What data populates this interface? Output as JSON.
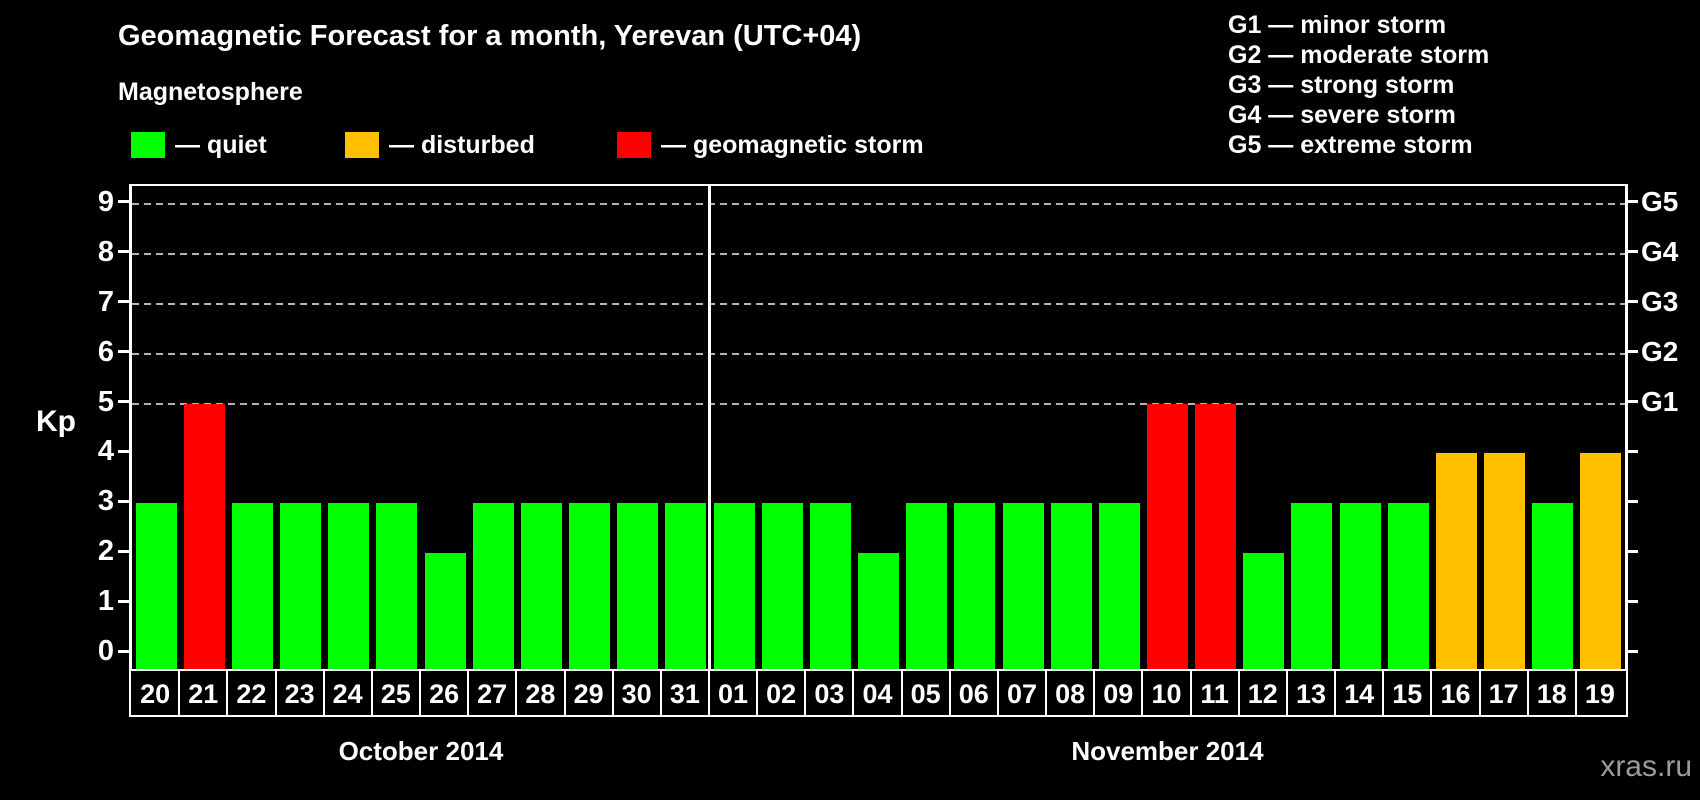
{
  "title": "Geomagnetic Forecast for a month, Yerevan (UTC+04)",
  "subtitle": "Magnetosphere",
  "legend": {
    "items": [
      {
        "name": "quiet",
        "label": "— quiet",
        "color": "#00ff00"
      },
      {
        "name": "disturbed",
        "label": "— disturbed",
        "color": "#ffc000"
      },
      {
        "name": "storm",
        "label": "— geomagnetic storm",
        "color": "#ff0000"
      }
    ]
  },
  "storm_scale_legend": [
    "G1 — minor storm",
    "G2 — moderate storm",
    "G3 — strong storm",
    "G4 — severe storm",
    "G5 — extreme storm"
  ],
  "watermark": "xras.ru",
  "chart_data": {
    "type": "bar",
    "title": "Geomagnetic Forecast for a month, Yerevan (UTC+04)",
    "ylabel_left": "Kp",
    "ylim": [
      0,
      9
    ],
    "y_ticks_left": [
      0,
      1,
      2,
      3,
      4,
      5,
      6,
      7,
      8,
      9
    ],
    "y_tick_labels_right": {
      "5": "G1",
      "6": "G2",
      "7": "G3",
      "8": "G4",
      "9": "G5"
    },
    "gridlines_at": [
      5,
      6,
      7,
      8,
      9
    ],
    "grid": "dashed, only at G-storm levels 5-9",
    "legend_position": "above chart",
    "colors": {
      "quiet": "#00ff00",
      "disturbed": "#ffc000",
      "storm": "#ff0000"
    },
    "months": [
      {
        "label": "October 2014",
        "days": [
          {
            "day": "20",
            "kp": 3,
            "status": "quiet"
          },
          {
            "day": "21",
            "kp": 5,
            "status": "storm"
          },
          {
            "day": "22",
            "kp": 3,
            "status": "quiet"
          },
          {
            "day": "23",
            "kp": 3,
            "status": "quiet"
          },
          {
            "day": "24",
            "kp": 3,
            "status": "quiet"
          },
          {
            "day": "25",
            "kp": 3,
            "status": "quiet"
          },
          {
            "day": "26",
            "kp": 2,
            "status": "quiet"
          },
          {
            "day": "27",
            "kp": 3,
            "status": "quiet"
          },
          {
            "day": "28",
            "kp": 3,
            "status": "quiet"
          },
          {
            "day": "29",
            "kp": 3,
            "status": "quiet"
          },
          {
            "day": "30",
            "kp": 3,
            "status": "quiet"
          },
          {
            "day": "31",
            "kp": 3,
            "status": "quiet"
          }
        ]
      },
      {
        "label": "November 2014",
        "days": [
          {
            "day": "01",
            "kp": 3,
            "status": "quiet"
          },
          {
            "day": "02",
            "kp": 3,
            "status": "quiet"
          },
          {
            "day": "03",
            "kp": 3,
            "status": "quiet"
          },
          {
            "day": "04",
            "kp": 2,
            "status": "quiet"
          },
          {
            "day": "05",
            "kp": 3,
            "status": "quiet"
          },
          {
            "day": "06",
            "kp": 3,
            "status": "quiet"
          },
          {
            "day": "07",
            "kp": 3,
            "status": "quiet"
          },
          {
            "day": "08",
            "kp": 3,
            "status": "quiet"
          },
          {
            "day": "09",
            "kp": 3,
            "status": "quiet"
          },
          {
            "day": "10",
            "kp": 5,
            "status": "storm"
          },
          {
            "day": "11",
            "kp": 5,
            "status": "storm"
          },
          {
            "day": "12",
            "kp": 2,
            "status": "quiet"
          },
          {
            "day": "13",
            "kp": 3,
            "status": "quiet"
          },
          {
            "day": "14",
            "kp": 3,
            "status": "quiet"
          },
          {
            "day": "15",
            "kp": 3,
            "status": "quiet"
          },
          {
            "day": "16",
            "kp": 4,
            "status": "disturbed"
          },
          {
            "day": "17",
            "kp": 4,
            "status": "disturbed"
          },
          {
            "day": "18",
            "kp": 3,
            "status": "quiet"
          },
          {
            "day": "19",
            "kp": 4,
            "status": "disturbed"
          }
        ]
      }
    ]
  }
}
